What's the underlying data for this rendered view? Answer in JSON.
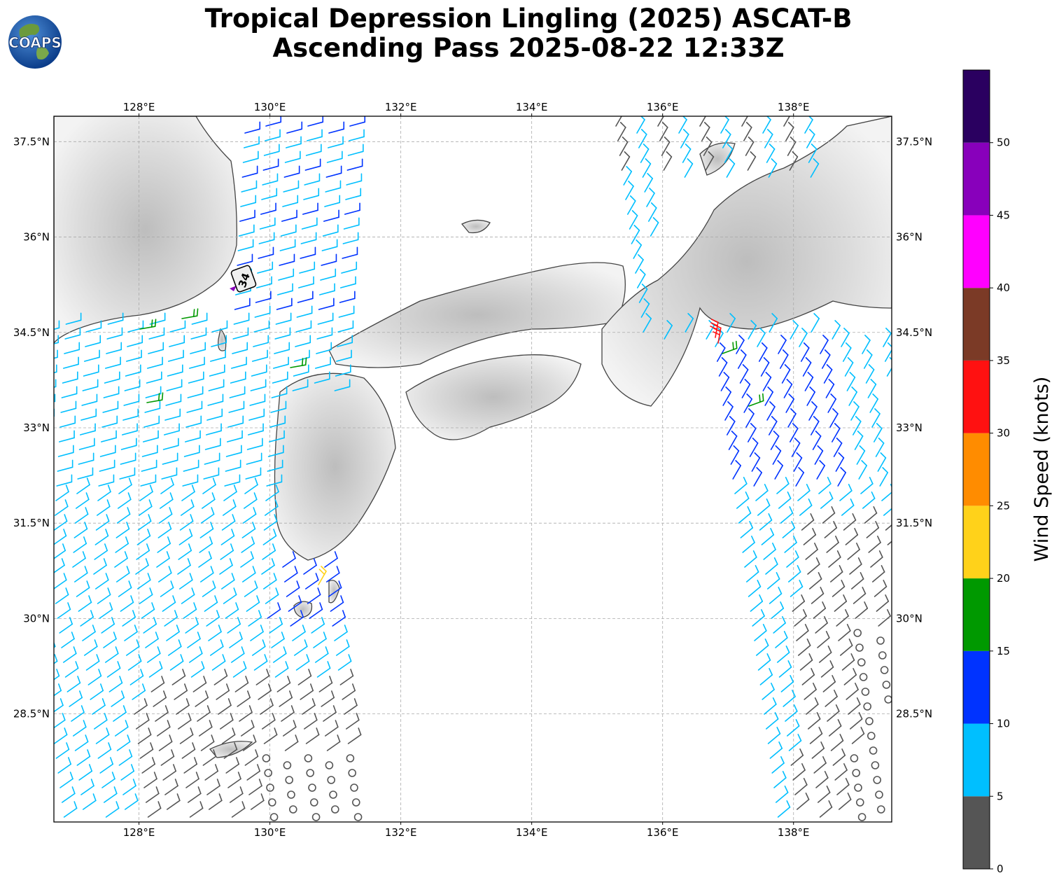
{
  "header": {
    "title_line1": "Tropical Depression Lingling (2025) ASCAT-B",
    "title_line2": "Ascending Pass 2025-08-22 12:33Z",
    "logo_text": "COAPS"
  },
  "map": {
    "lon_range": [
      126.7,
      139.5
    ],
    "lat_range": [
      26.8,
      37.9
    ],
    "lon_ticks": [
      "128°E",
      "130°E",
      "132°E",
      "134°E",
      "136°E",
      "138°E"
    ],
    "lon_tick_values": [
      128,
      130,
      132,
      134,
      136,
      138
    ],
    "lat_ticks": [
      "37.5°N",
      "36°N",
      "34.5°N",
      "33°N",
      "31.5°N",
      "30°N",
      "28.5°N"
    ],
    "lat_tick_values": [
      37.5,
      36,
      34.5,
      33,
      31.5,
      30,
      28.5
    ],
    "grid": true,
    "storm_marker_label": "34"
  },
  "colorbar": {
    "label": "Wind Speed (knots)",
    "ticks": [
      "0",
      "5",
      "10",
      "15",
      "20",
      "25",
      "30",
      "35",
      "40",
      "45",
      "50"
    ],
    "bins": [
      {
        "min": 0,
        "max": 5,
        "color": "#555555"
      },
      {
        "min": 5,
        "max": 10,
        "color": "#00bfff"
      },
      {
        "min": 10,
        "max": 15,
        "color": "#0033ff"
      },
      {
        "min": 15,
        "max": 20,
        "color": "#009900"
      },
      {
        "min": 20,
        "max": 25,
        "color": "#ffd21a"
      },
      {
        "min": 25,
        "max": 30,
        "color": "#ff8c00"
      },
      {
        "min": 30,
        "max": 35,
        "color": "#ff1111"
      },
      {
        "min": 35,
        "max": 40,
        "color": "#7b3a26"
      },
      {
        "min": 40,
        "max": 45,
        "color": "#ff00ff"
      },
      {
        "min": 45,
        "max": 50,
        "color": "#8800bb"
      },
      {
        "min": 50,
        "max": 55,
        "color": "#2a0060"
      }
    ]
  }
}
